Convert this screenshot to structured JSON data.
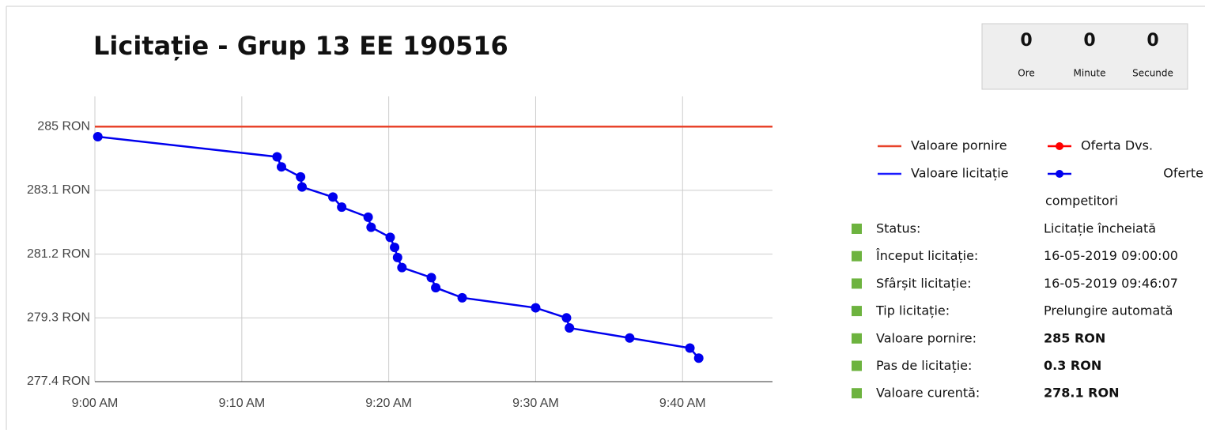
{
  "title": "Licitație - Grup 13 EE 190516",
  "countdown": [
    {
      "value": "0",
      "label": "Ore"
    },
    {
      "value": "0",
      "label": "Minute"
    },
    {
      "value": "0",
      "label": "Secunde"
    }
  ],
  "chart_data": {
    "type": "line",
    "xlim": [
      0,
      46.12
    ],
    "xticks": [
      {
        "value": 0,
        "label": "9:00 AM"
      },
      {
        "value": 10,
        "label": "9:10 AM"
      },
      {
        "value": 20,
        "label": "9:20 AM"
      },
      {
        "value": 30,
        "label": "9:30 AM"
      },
      {
        "value": 40,
        "label": "9:40 AM"
      }
    ],
    "ylim": [
      277.4,
      285.9
    ],
    "yticks": [
      {
        "value": 277.4,
        "label": "277.4 RON"
      },
      {
        "value": 279.3,
        "label": "279.3 RON"
      },
      {
        "value": 281.2,
        "label": "281.2 RON"
      },
      {
        "value": 283.1,
        "label": "283.1 RON"
      },
      {
        "value": 285,
        "label": "285 RON"
      }
    ],
    "grid": true,
    "series": [
      {
        "name": "Valoare pornire",
        "color": "#e8432b",
        "style": "line",
        "x": [
          0,
          46.12
        ],
        "values": [
          285,
          285
        ]
      },
      {
        "name": "Oferta Dvs.",
        "color": "#ff0000",
        "style": "markers",
        "x": [],
        "values": []
      },
      {
        "name": "Valoare licitație",
        "color": "#1a1aff",
        "style": "line",
        "x": [],
        "values": []
      },
      {
        "name": "Oferte competitori",
        "color": "#0000ee",
        "style": "line-markers",
        "x": [
          0.2,
          12.4,
          12.7,
          14.0,
          14.1,
          16.2,
          16.8,
          18.6,
          18.8,
          20.1,
          20.4,
          20.6,
          20.9,
          22.9,
          23.2,
          25.0,
          30.0,
          32.1,
          32.3,
          36.4,
          40.5,
          41.1
        ],
        "values": [
          284.7,
          284.1,
          283.8,
          283.5,
          283.2,
          282.9,
          282.6,
          282.3,
          282.0,
          281.7,
          281.4,
          281.1,
          280.8,
          280.5,
          280.2,
          279.9,
          279.6,
          279.3,
          279.0,
          278.7,
          278.4,
          278.1
        ]
      }
    ]
  },
  "info": [
    {
      "label": "Status:",
      "value": "Licitație încheiată"
    },
    {
      "label": "Început licitație:",
      "value": "16-05-2019 09:00:00"
    },
    {
      "label": "Sfârșit licitație:",
      "value": "16-05-2019 09:46:07"
    },
    {
      "label": "Tip licitație:",
      "value": "Prelungire automată"
    },
    {
      "label": "Valoare pornire:",
      "value": "285 RON"
    },
    {
      "label": "Pas de licitație:",
      "value": "0.3 RON"
    },
    {
      "label": "Valoare curentă:",
      "value": "278.1 RON"
    }
  ]
}
